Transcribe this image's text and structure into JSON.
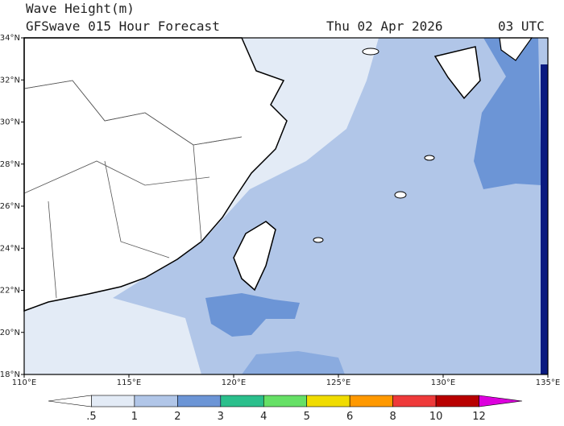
{
  "header": {
    "title": "Wave Height(m)",
    "subtitle": "GFSwave 015 Hour Forecast",
    "date": "Thu 02 Apr 2026",
    "time": "03 UTC"
  },
  "map": {
    "lon_range": [
      110,
      135
    ],
    "lat_range": [
      18,
      34
    ],
    "lat_ticks": [
      {
        "value": 18,
        "label": "18°N"
      },
      {
        "value": 20,
        "label": "20°N"
      },
      {
        "value": 22,
        "label": "22°N"
      },
      {
        "value": 24,
        "label": "24°N"
      },
      {
        "value": 26,
        "label": "26°N"
      },
      {
        "value": 28,
        "label": "28°N"
      },
      {
        "value": 30,
        "label": "30°N"
      },
      {
        "value": 32,
        "label": "32°N"
      },
      {
        "value": 34,
        "label": "34°N"
      }
    ],
    "lon_ticks": [
      {
        "value": 110,
        "label": "110°E"
      },
      {
        "value": 115,
        "label": "115°E"
      },
      {
        "value": 120,
        "label": "120°E"
      },
      {
        "value": 125,
        "label": "125°E"
      },
      {
        "value": 130,
        "label": "130°E"
      },
      {
        "value": 135,
        "label": "135°E"
      }
    ],
    "colorbar": {
      "ticks": [
        {
          "value": 0.5,
          "label": ".5"
        },
        1,
        2,
        3,
        4,
        5,
        6,
        8,
        10,
        12
      ],
      "colors": [
        "#ffffff",
        "#e3ebf6",
        "#b1c6e8",
        "#6c95d6",
        "#2bbf8c",
        "#66e066",
        "#f0dc00",
        "#ff9900",
        "#ee3a3a",
        "#b80000",
        "#dd00dd"
      ]
    }
  }
}
